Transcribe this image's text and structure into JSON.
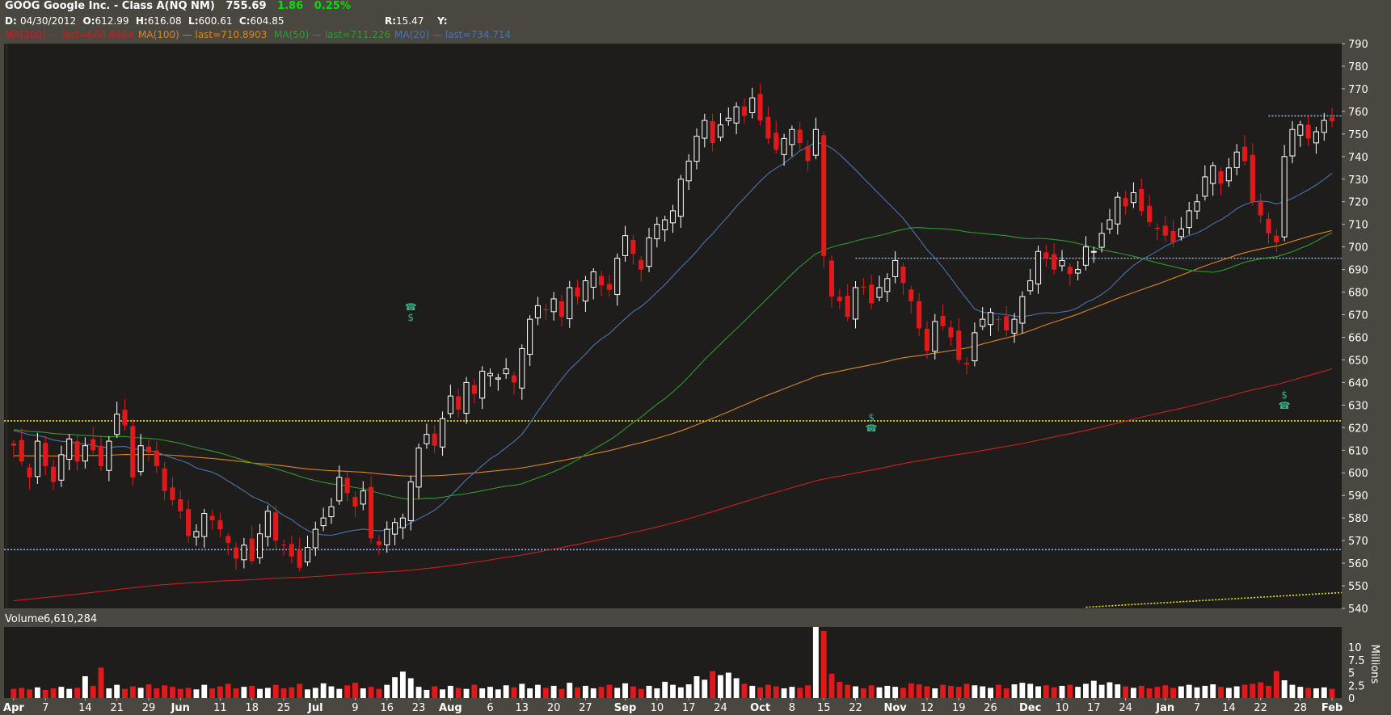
{
  "header": {
    "symbol_line": "GOOG Google Inc. - Class A(NQ NM)",
    "last": "755.69",
    "change": "1.86",
    "change_pct": "0.25%",
    "date_label": "D:",
    "date": "04/30/2012",
    "open_label": "O:",
    "open": "612.99",
    "high_label": "H:",
    "high": "616.08",
    "low_label": "L:",
    "low": "600.61",
    "close_label": "C:",
    "close": "604.85",
    "r_label": "R:",
    "r_value": "15.47",
    "y_label": "Y:"
  },
  "ma_legend": [
    {
      "name": "MA(200)",
      "last": "last=660.8664",
      "color": "#c8201e"
    },
    {
      "name": "MA(100)",
      "last": "last=710.8903",
      "color": "#d8861e"
    },
    {
      "name": "MA(50)",
      "last": "last=711.226",
      "color": "#2e9a2e"
    },
    {
      "name": "MA(20)",
      "last": "last=734.714",
      "color": "#4a74b0"
    }
  ],
  "volume_label": "Volume",
  "volume_value": "6,610,284",
  "volume_axis_unit": "Millions",
  "colors": {
    "up_candle": "#ffffff",
    "down_candle": "#e01a1a",
    "plot_bg": "#1f1d1b",
    "frame": "#4a4640",
    "line_blue_dotted": "#8aaee0",
    "line_yellow_dotted": "#e8e020",
    "event_icon": "#3ab08a"
  },
  "chart_data": {
    "type": "candlestick",
    "price_ylim": [
      540,
      790
    ],
    "price_yticks": [
      540,
      550,
      560,
      570,
      580,
      590,
      600,
      610,
      620,
      630,
      640,
      650,
      660,
      670,
      680,
      690,
      700,
      710,
      720,
      730,
      740,
      750,
      760,
      770,
      780,
      790
    ],
    "volume_ylim": [
      0,
      14
    ],
    "volume_yticks": [
      "0",
      "2.5",
      "5",
      "7.5",
      "10"
    ],
    "x_tick_labels": [
      "Apr",
      "7",
      "14",
      "21",
      "29",
      "Jun",
      "11",
      "18",
      "25",
      "Jul",
      "9",
      "16",
      "23",
      "Aug",
      "6",
      "13",
      "20",
      "27",
      "Sep",
      "10",
      "17",
      "24",
      "Oct",
      "8",
      "15",
      "22",
      "Nov",
      "12",
      "19",
      "26",
      "Dec",
      "10",
      "17",
      "24",
      "Jan",
      "7",
      "14",
      "22",
      "28",
      "Feb"
    ],
    "x_tick_bold": [
      "Apr",
      "Jun",
      "Jul",
      "Aug",
      "Sep",
      "Oct",
      "Nov",
      "Dec",
      "Jan",
      "Feb"
    ],
    "closes": [
      612,
      605,
      598,
      614,
      603,
      596,
      608,
      615,
      605,
      612,
      610,
      603,
      614,
      626,
      621,
      598,
      612,
      609,
      603,
      592,
      588,
      583,
      572,
      574,
      582,
      579,
      575,
      569,
      562,
      568,
      561,
      573,
      583,
      570,
      568,
      563,
      558,
      567,
      575,
      580,
      585,
      598,
      591,
      585,
      592,
      571,
      568,
      575,
      578,
      580,
      596,
      611,
      617,
      612,
      624,
      634,
      628,
      640,
      635,
      645,
      644,
      642,
      646,
      640,
      655,
      668,
      674,
      672,
      677,
      669,
      682,
      678,
      685,
      689,
      683,
      681,
      695,
      705,
      697,
      690,
      704,
      710,
      712,
      716,
      730,
      738,
      749,
      756,
      746,
      754,
      757,
      762,
      758,
      766,
      756,
      748,
      743,
      748,
      752,
      746,
      738,
      752,
      696,
      678,
      676,
      669,
      682,
      682,
      675,
      682,
      686,
      694,
      684,
      676,
      664,
      654,
      667,
      665,
      660,
      650,
      648,
      662,
      668,
      671,
      668,
      663,
      668,
      678,
      685,
      698,
      695,
      690,
      694,
      688,
      690,
      700,
      698,
      706,
      712,
      722,
      718,
      724,
      716,
      711,
      708,
      705,
      702,
      708,
      716,
      720,
      731,
      736,
      728,
      735,
      742,
      738,
      720,
      714,
      706,
      702,
      740,
      752,
      754,
      748,
      751,
      756,
      755.69
    ],
    "volumes": [
      1.8,
      2.0,
      1.7,
      2.1,
      1.6,
      1.9,
      2.2,
      1.8,
      2.0,
      4.3,
      2.4,
      6.0,
      1.9,
      2.6,
      1.8,
      2.3,
      2.0,
      2.7,
      1.9,
      2.5,
      2.2,
      1.8,
      2.0,
      1.7,
      2.6,
      1.9,
      2.3,
      2.8,
      1.9,
      2.2,
      2.4,
      1.8,
      2.0,
      2.6,
      1.9,
      2.1,
      2.8,
      1.7,
      2.0,
      2.9,
      2.3,
      1.8,
      2.5,
      3.0,
      1.9,
      2.2,
      1.8,
      2.6,
      4.1,
      5.2,
      3.9,
      2.2,
      1.6,
      2.3,
      1.7,
      2.4,
      2.0,
      1.8,
      2.6,
      1.9,
      2.2,
      1.7,
      2.5,
      2.1,
      2.8,
      1.9,
      2.6,
      2.0,
      2.4,
      1.8,
      3.0,
      2.1,
      2.4,
      1.9,
      2.2,
      2.6,
      2.0,
      2.9,
      2.3,
      1.8,
      2.4,
      1.9,
      3.2,
      2.6,
      2.1,
      2.7,
      4.3,
      3.6,
      5.3,
      4.5,
      5.0,
      3.9,
      2.8,
      2.4,
      2.1,
      2.6,
      2.3,
      1.9,
      2.2,
      2.0,
      2.5,
      14.0,
      13.2,
      4.8,
      3.2,
      2.6,
      2.3,
      1.9,
      2.5,
      2.1,
      2.4,
      2.2,
      2.0,
      2.9,
      2.7,
      2.3,
      1.9,
      2.6,
      2.4,
      2.2,
      2.8,
      2.5,
      2.3,
      2.0,
      2.6,
      1.9,
      2.7,
      3.0,
      2.8,
      2.3,
      2.5,
      2.1,
      2.4,
      2.6,
      2.2,
      2.8,
      3.4,
      2.6,
      3.1,
      2.7,
      2.3,
      2.0,
      2.4,
      1.9,
      2.2,
      2.5,
      2.0,
      2.3,
      2.6,
      2.1,
      2.4,
      2.7,
      2.2,
      2.0,
      2.3,
      2.6,
      2.8,
      3.1,
      2.4,
      5.3,
      3.5,
      2.6,
      2.2,
      2.0,
      1.9,
      2.1,
      1.8
    ],
    "horizontal_lines": [
      {
        "price": 566,
        "style": "dotted",
        "color": "#8aaee0"
      },
      {
        "price": 623,
        "style": "dotted",
        "color": "#e8e020"
      },
      {
        "price": 695,
        "style": "dotted",
        "color": "#8aaee0",
        "from_index": 106
      },
      {
        "price": 758,
        "style": "dotted",
        "color": "#8aaee0",
        "from_index": 158
      }
    ],
    "event_markers": [
      {
        "index": 50,
        "symbols": [
          "☎",
          "$"
        ]
      },
      {
        "index": 108,
        "symbols": [
          "$",
          "☎"
        ]
      },
      {
        "index": 160,
        "symbols": [
          "$",
          "☎"
        ]
      }
    ],
    "legend_placement": "top-left",
    "grid": false
  }
}
